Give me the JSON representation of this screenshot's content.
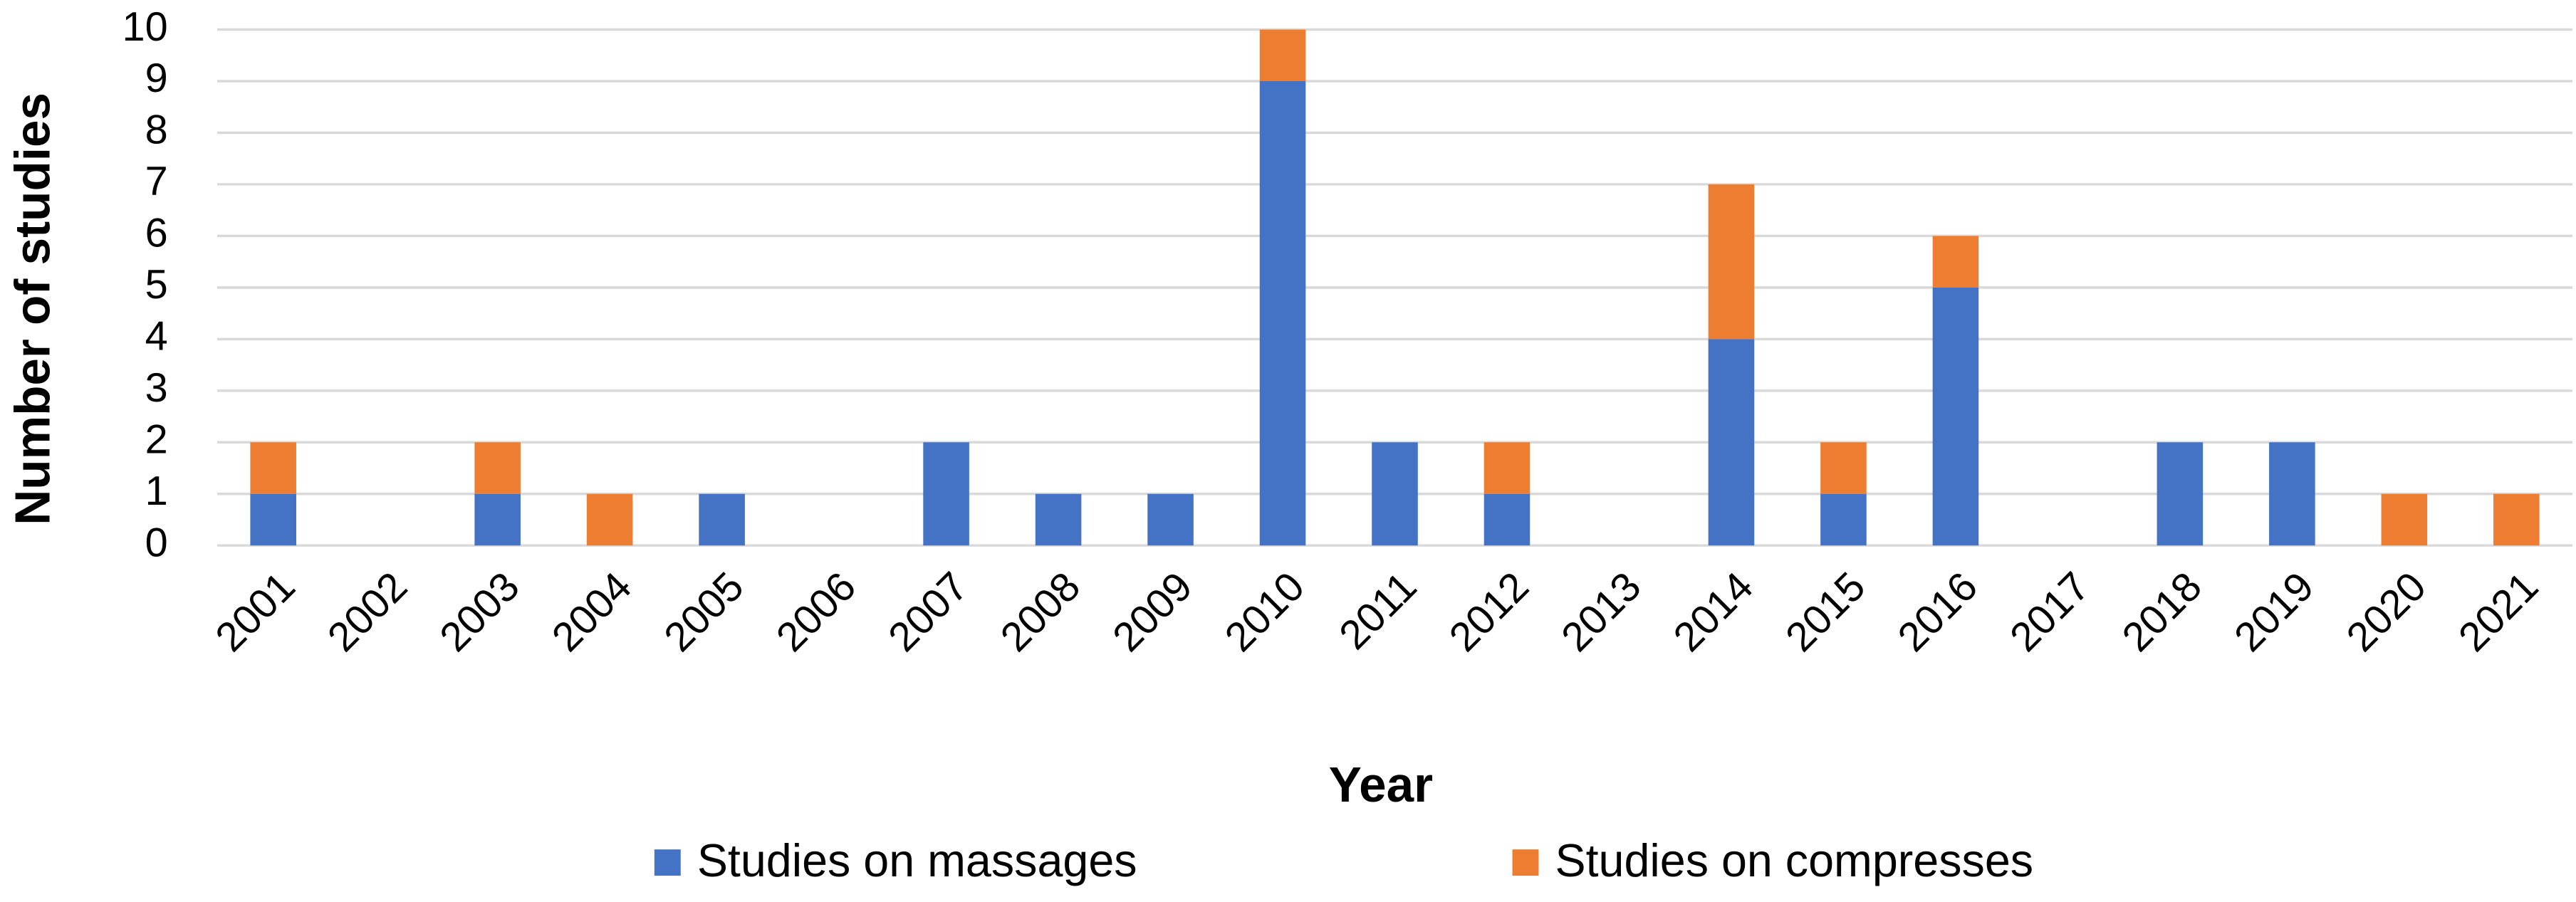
{
  "chart_data": {
    "type": "stacked_bar",
    "categories": [
      "2001",
      "2002",
      "2003",
      "2004",
      "2005",
      "2006",
      "2007",
      "2008",
      "2009",
      "2010",
      "2011",
      "2012",
      "2013",
      "2014",
      "2015",
      "2016",
      "2017",
      "2018",
      "2019",
      "2020",
      "2021"
    ],
    "series": [
      {
        "name": "Studies on massages",
        "color": "#4472c4",
        "values": [
          1,
          0,
          1,
          0,
          1,
          0,
          2,
          1,
          1,
          9,
          2,
          1,
          0,
          4,
          1,
          5,
          0,
          2,
          2,
          0,
          0
        ]
      },
      {
        "name": "Studies on compresses",
        "color": "#ed7d31",
        "values": [
          1,
          0,
          1,
          1,
          0,
          0,
          0,
          0,
          0,
          1,
          0,
          1,
          0,
          3,
          1,
          1,
          0,
          0,
          0,
          1,
          1
        ]
      }
    ],
    "x_label": "Year",
    "y_label": "Number of studies",
    "ylim": [
      0,
      10
    ],
    "yticks": [
      0,
      1,
      2,
      3,
      4,
      5,
      6,
      7,
      8,
      9,
      10
    ],
    "grid": true,
    "legend": "bottom"
  }
}
